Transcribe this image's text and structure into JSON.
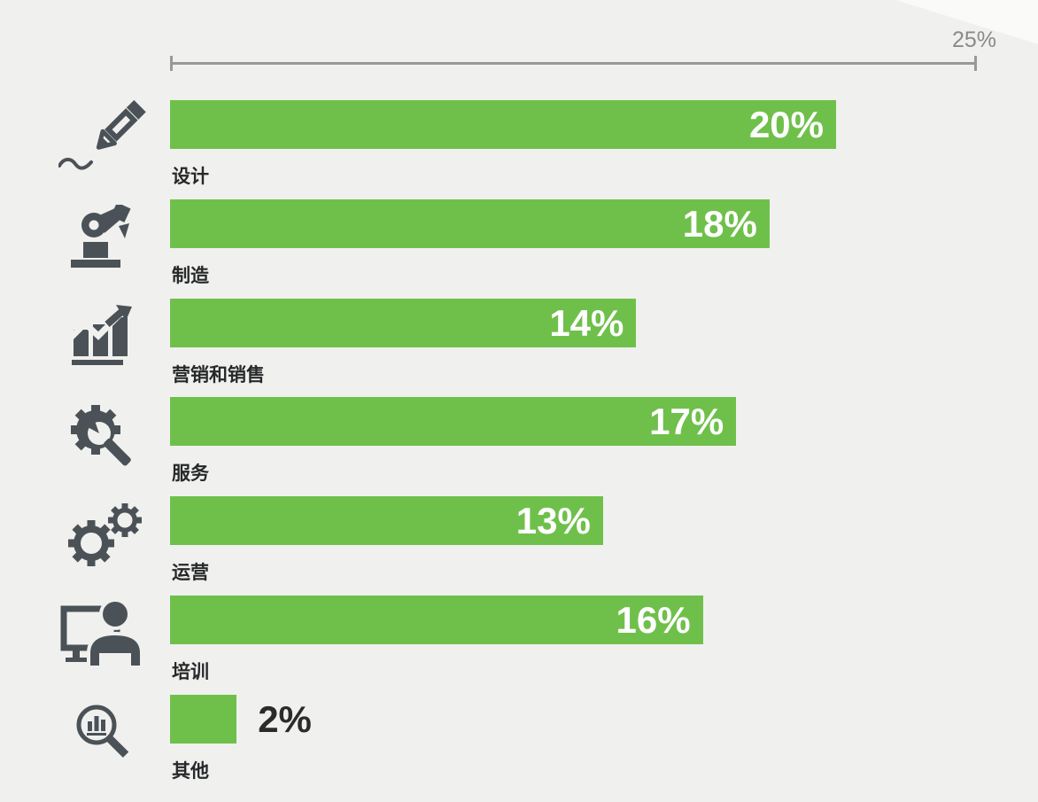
{
  "slide": {
    "background_color": "#f0f0ee",
    "corner_accent_color": "#fafaf8"
  },
  "axis": {
    "max_label": "25%",
    "max_value": 25,
    "line_color": "#979a99",
    "label_color": "#8a8a8a"
  },
  "chart_data": {
    "type": "bar",
    "orientation": "horizontal",
    "title": "",
    "unit": "percent",
    "xlim": [
      0,
      25
    ],
    "grid": false,
    "bar_color": "#6fc04b",
    "value_label_color_inside": "#ffffff",
    "value_label_color_outside": "#2b2b2b",
    "category_label_color": "#26282a",
    "icon_color": "#4b5257",
    "categories": [
      "设计",
      "制造",
      "营销和销售",
      "服务",
      "运营",
      "培训",
      "其他"
    ],
    "values": [
      20,
      18,
      14,
      17,
      13,
      16,
      2
    ],
    "value_labels": [
      "20%",
      "18%",
      "14%",
      "17%",
      "13%",
      "16%",
      "2%"
    ],
    "icons": [
      "pencil-icon",
      "robot-arm-icon",
      "growth-chart-icon",
      "gear-wrench-icon",
      "gears-icon",
      "trainee-computer-icon",
      "magnifier-chart-icon"
    ]
  }
}
